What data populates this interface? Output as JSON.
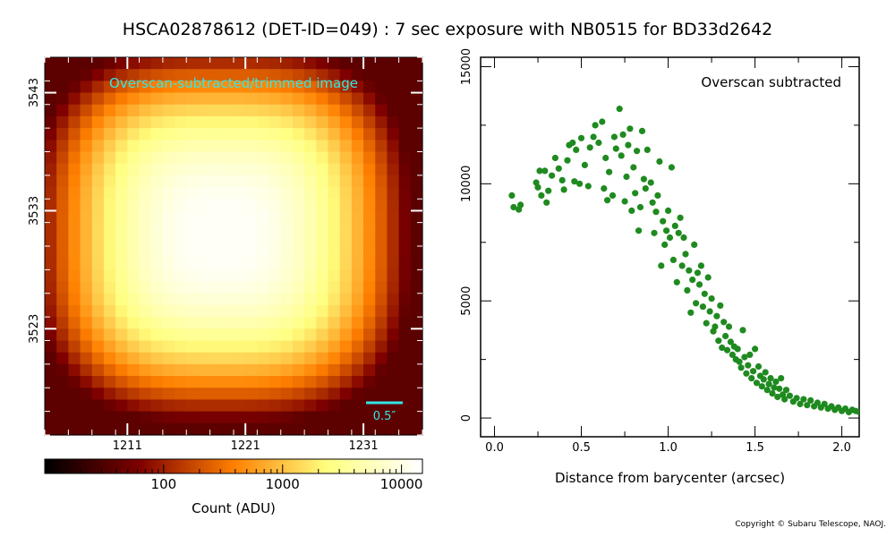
{
  "title": "HSCA02878612 (DET-ID=049) :  7 sec exposure with NB0515 for BD33d2642",
  "copyright": "Copyright © Subaru Telescope, NAOJ.",
  "colors": {
    "accent_text": "#33e6e6",
    "scatter": "#1f8a1f"
  },
  "chart_data": [
    {
      "type": "heatmap",
      "title": "Overscan-subtracted/trimmed image",
      "colormap": "afmhot",
      "x_ticks": [
        1211,
        1221,
        1231
      ],
      "y_ticks": [
        3523,
        3533,
        3543
      ],
      "xlim": [
        1204,
        1236
      ],
      "ylim": [
        3514,
        3546
      ],
      "scale_bar_label": "0.5″",
      "scale_bar_arcsec": 0.5,
      "colorbar": {
        "label": "Count (ADU)",
        "scale": "log",
        "range": [
          10,
          15000
        ],
        "tick_labels": [
          "100",
          "1000",
          "10000"
        ],
        "tick_values": [
          100,
          1000,
          10000
        ]
      }
    },
    {
      "type": "scatter",
      "title": "Overscan subtracted",
      "xlabel": "Distance from barycenter (arcsec)",
      "ylabel": "",
      "xlim": [
        -0.08,
        2.1
      ],
      "ylim": [
        -800,
        15400
      ],
      "x_ticks": [
        0.0,
        0.5,
        1.0,
        1.5,
        2.0
      ],
      "x_tick_labels": [
        "0.0",
        "0.5",
        "1.0",
        "1.5",
        "2.0"
      ],
      "y_ticks": [
        0,
        5000,
        10000,
        15000
      ],
      "y_tick_labels": [
        "0",
        "5000",
        "10000",
        "15000"
      ],
      "grid": false,
      "points": [
        [
          0.1,
          9500
        ],
        [
          0.11,
          9000
        ],
        [
          0.14,
          8900
        ],
        [
          0.15,
          9100
        ],
        [
          0.24,
          10050
        ],
        [
          0.25,
          9850
        ],
        [
          0.26,
          10550
        ],
        [
          0.27,
          9500
        ],
        [
          0.29,
          10550
        ],
        [
          0.3,
          9200
        ],
        [
          0.31,
          9700
        ],
        [
          0.33,
          10350
        ],
        [
          0.35,
          11100
        ],
        [
          0.37,
          10650
        ],
        [
          0.39,
          10150
        ],
        [
          0.4,
          9750
        ],
        [
          0.42,
          11000
        ],
        [
          0.43,
          11650
        ],
        [
          0.45,
          11750
        ],
        [
          0.46,
          10100
        ],
        [
          0.47,
          11450
        ],
        [
          0.49,
          10000
        ],
        [
          0.5,
          11950
        ],
        [
          0.52,
          10800
        ],
        [
          0.54,
          9900
        ],
        [
          0.55,
          11550
        ],
        [
          0.57,
          12000
        ],
        [
          0.58,
          12500
        ],
        [
          0.6,
          11750
        ],
        [
          0.62,
          12650
        ],
        [
          0.63,
          9800
        ],
        [
          0.64,
          11100
        ],
        [
          0.65,
          9300
        ],
        [
          0.66,
          10500
        ],
        [
          0.68,
          9500
        ],
        [
          0.69,
          12000
        ],
        [
          0.7,
          11500
        ],
        [
          0.72,
          13200
        ],
        [
          0.73,
          11200
        ],
        [
          0.74,
          12100
        ],
        [
          0.75,
          9250
        ],
        [
          0.76,
          10300
        ],
        [
          0.77,
          11650
        ],
        [
          0.78,
          12350
        ],
        [
          0.79,
          8850
        ],
        [
          0.8,
          10700
        ],
        [
          0.81,
          9600
        ],
        [
          0.82,
          11400
        ],
        [
          0.83,
          8000
        ],
        [
          0.84,
          9000
        ],
        [
          0.85,
          12250
        ],
        [
          0.86,
          10200
        ],
        [
          0.87,
          9800
        ],
        [
          0.88,
          11450
        ],
        [
          0.9,
          10050
        ],
        [
          0.91,
          9200
        ],
        [
          0.92,
          7900
        ],
        [
          0.93,
          8800
        ],
        [
          0.94,
          9500
        ],
        [
          0.95,
          10950
        ],
        [
          0.96,
          6500
        ],
        [
          0.97,
          8400
        ],
        [
          0.98,
          7400
        ],
        [
          0.99,
          8000
        ],
        [
          1.0,
          8850
        ],
        [
          1.01,
          7700
        ],
        [
          1.02,
          10700
        ],
        [
          1.03,
          6750
        ],
        [
          1.04,
          8200
        ],
        [
          1.05,
          5800
        ],
        [
          1.06,
          7900
        ],
        [
          1.07,
          8550
        ],
        [
          1.08,
          6500
        ],
        [
          1.09,
          7700
        ],
        [
          1.1,
          7000
        ],
        [
          1.11,
          5450
        ],
        [
          1.12,
          6300
        ],
        [
          1.13,
          4500
        ],
        [
          1.14,
          5900
        ],
        [
          1.15,
          7400
        ],
        [
          1.16,
          4900
        ],
        [
          1.17,
          6200
        ],
        [
          1.18,
          5700
        ],
        [
          1.19,
          6500
        ],
        [
          1.2,
          4750
        ],
        [
          1.21,
          5300
        ],
        [
          1.22,
          4050
        ],
        [
          1.23,
          6000
        ],
        [
          1.24,
          4550
        ],
        [
          1.25,
          5100
        ],
        [
          1.26,
          3700
        ],
        [
          1.27,
          3900
        ],
        [
          1.28,
          4350
        ],
        [
          1.29,
          3300
        ],
        [
          1.3,
          4800
        ],
        [
          1.31,
          3000
        ],
        [
          1.32,
          4100
        ],
        [
          1.33,
          3500
        ],
        [
          1.34,
          2900
        ],
        [
          1.35,
          3900
        ],
        [
          1.36,
          3250
        ],
        [
          1.37,
          2700
        ],
        [
          1.38,
          3050
        ],
        [
          1.39,
          2500
        ],
        [
          1.4,
          2950
        ],
        [
          1.41,
          2400
        ],
        [
          1.42,
          2150
        ],
        [
          1.43,
          3750
        ],
        [
          1.44,
          2600
        ],
        [
          1.45,
          1900
        ],
        [
          1.46,
          2250
        ],
        [
          1.47,
          2700
        ],
        [
          1.48,
          1700
        ],
        [
          1.49,
          2000
        ],
        [
          1.5,
          2950
        ],
        [
          1.51,
          1500
        ],
        [
          1.52,
          2200
        ],
        [
          1.53,
          1800
        ],
        [
          1.54,
          1350
        ],
        [
          1.55,
          1650
        ],
        [
          1.56,
          1950
        ],
        [
          1.57,
          1200
        ],
        [
          1.58,
          1450
        ],
        [
          1.59,
          1700
        ],
        [
          1.6,
          1050
        ],
        [
          1.61,
          1300
        ],
        [
          1.62,
          1550
        ],
        [
          1.63,
          900
        ],
        [
          1.64,
          1250
        ],
        [
          1.65,
          1700
        ],
        [
          1.66,
          1000
        ],
        [
          1.67,
          800
        ],
        [
          1.68,
          1200
        ],
        [
          1.7,
          950
        ],
        [
          1.72,
          700
        ],
        [
          1.74,
          850
        ],
        [
          1.76,
          600
        ],
        [
          1.78,
          800
        ],
        [
          1.8,
          550
        ],
        [
          1.82,
          750
        ],
        [
          1.84,
          500
        ],
        [
          1.86,
          650
        ],
        [
          1.88,
          450
        ],
        [
          1.9,
          600
        ],
        [
          1.92,
          400
        ],
        [
          1.94,
          500
        ],
        [
          1.96,
          350
        ],
        [
          1.98,
          450
        ],
        [
          2.0,
          300
        ],
        [
          2.02,
          400
        ],
        [
          2.04,
          250
        ],
        [
          2.06,
          350
        ],
        [
          2.08,
          300
        ],
        [
          2.1,
          250
        ]
      ]
    }
  ]
}
